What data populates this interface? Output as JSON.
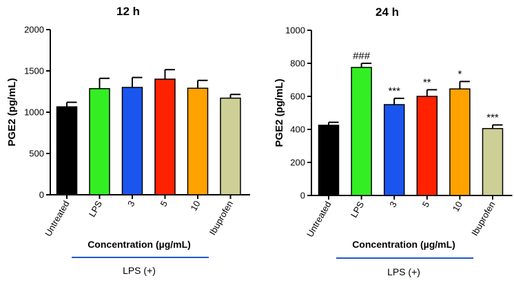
{
  "chart_data": [
    {
      "type": "bar",
      "title": "12 h",
      "ylabel": "PGE2 (pg/mL)",
      "xlabel": "Concentration (µg/mL)",
      "group_label": "LPS (+)",
      "ylim": [
        0,
        2000
      ],
      "yticks": [
        "0",
        "500",
        "1000",
        "1500",
        "2000"
      ],
      "categories": [
        "Untreated",
        "LPS",
        "3",
        "5",
        "10",
        "Ibuprofen"
      ],
      "values": [
        1065,
        1285,
        1300,
        1400,
        1290,
        1170
      ],
      "errors": [
        55,
        125,
        120,
        115,
        95,
        45
      ],
      "significance": [
        "",
        "",
        "",
        "",
        "",
        ""
      ],
      "colors": [
        "#000000",
        "#33ee22",
        "#1a55ee",
        "#ff2200",
        "#ffa200",
        "#cdcf96"
      ],
      "grid": false
    },
    {
      "type": "bar",
      "title": "24 h",
      "ylabel": "PGE2 (pg/mL)",
      "xlabel": "Concentration (µg/mL)",
      "group_label": "LPS (+)",
      "ylim": [
        0,
        1000
      ],
      "yticks": [
        "0",
        "200",
        "400",
        "600",
        "800",
        "1000"
      ],
      "categories": [
        "Untreated",
        "LPS",
        "3",
        "5",
        "10",
        "Ibuprofen"
      ],
      "values": [
        425,
        775,
        550,
        600,
        645,
        405
      ],
      "errors": [
        18,
        25,
        38,
        40,
        45,
        22
      ],
      "significance": [
        "",
        "###",
        "***",
        "**",
        "*",
        "***"
      ],
      "colors": [
        "#000000",
        "#33ee22",
        "#1a55ee",
        "#ff2200",
        "#ffa200",
        "#cdcf96"
      ],
      "grid": false
    }
  ]
}
